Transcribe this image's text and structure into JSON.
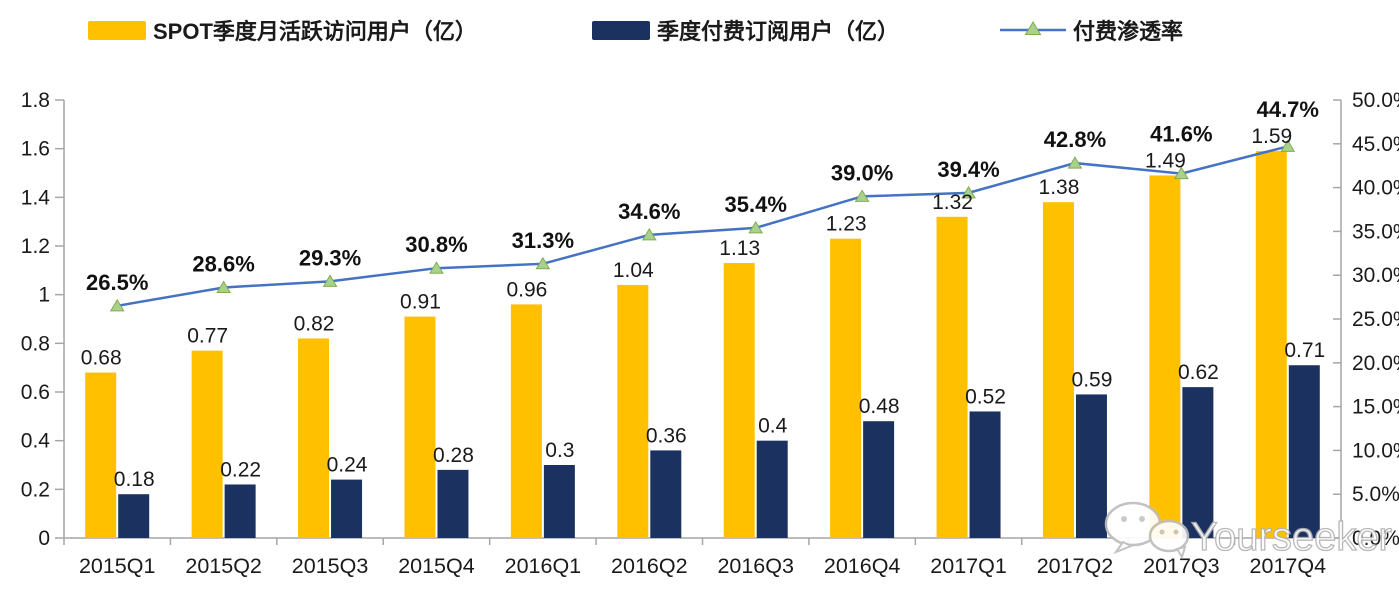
{
  "legend": {
    "items": [
      {
        "label": "SPOT季度月活跃访问用户（亿）",
        "color": "#FFC000"
      },
      {
        "label": "季度付费订阅用户（亿）",
        "color": "#1B3261"
      },
      {
        "label": "付费渗透率",
        "line_color": "#4472C4",
        "marker_color": "#A9D18E"
      }
    ]
  },
  "chart_data": {
    "type": "bar",
    "subtype": "combo-bar-line-dual-axis",
    "title": "",
    "categories": [
      "2015Q1",
      "2015Q2",
      "2015Q3",
      "2015Q4",
      "2016Q1",
      "2016Q2",
      "2016Q3",
      "2016Q4",
      "2017Q1",
      "2017Q2",
      "2017Q3",
      "2017Q4"
    ],
    "series": [
      {
        "name": "SPOT季度月活跃访问用户（亿）",
        "type": "bar",
        "axis": "left",
        "color": "#FFC000",
        "values": [
          0.68,
          0.77,
          0.82,
          0.91,
          0.96,
          1.04,
          1.13,
          1.23,
          1.32,
          1.38,
          1.49,
          1.59
        ],
        "labels": [
          "0.68",
          "0.77",
          "0.82",
          "0.91",
          "0.96",
          "1.04",
          "1.13",
          "1.23",
          "1.32",
          "1.38",
          "1.49",
          "1.59"
        ]
      },
      {
        "name": "季度付费订阅用户（亿）",
        "type": "bar",
        "axis": "left",
        "color": "#1B3261",
        "values": [
          0.18,
          0.22,
          0.24,
          0.28,
          0.3,
          0.36,
          0.4,
          0.48,
          0.52,
          0.59,
          0.62,
          0.71
        ],
        "labels": [
          "0.18",
          "0.22",
          "0.24",
          "0.28",
          "0.3",
          "0.36",
          "0.4",
          "0.48",
          "0.52",
          "0.59",
          "0.62",
          "0.71"
        ]
      },
      {
        "name": "付费渗透率",
        "type": "line",
        "axis": "right",
        "color": "#4472C4",
        "marker": "triangle",
        "marker_color": "#A9D18E",
        "marker_edge_color": "#82AB52",
        "values": [
          26.5,
          28.6,
          29.3,
          30.8,
          31.3,
          34.6,
          35.4,
          39.0,
          39.4,
          42.8,
          41.6,
          44.7
        ],
        "labels": [
          "26.5%",
          "28.6%",
          "29.3%",
          "30.8%",
          "31.3%",
          "34.6%",
          "35.4%",
          "39.0%",
          "39.4%",
          "42.8%",
          "41.6%",
          "44.7%"
        ]
      }
    ],
    "left_axis": {
      "min": 0,
      "max": 1.8,
      "step": 0.2,
      "tick_labels": [
        "0",
        "0.2",
        "0.4",
        "0.6",
        "0.8",
        "1",
        "1.2",
        "1.4",
        "1.6",
        "1.8"
      ]
    },
    "right_axis": {
      "min": 0,
      "max": 50,
      "step": 5,
      "tick_labels": [
        "0.0%",
        "5.0%",
        "10.0%",
        "15.0%",
        "20.0%",
        "25.0%",
        "30.0%",
        "35.0%",
        "40.0%",
        "45.0%",
        "50.0%"
      ]
    },
    "grid": false,
    "legend_position": "top",
    "axis_color": "#a6a6a6",
    "label_color": "#1a1a1a"
  },
  "watermark": {
    "text": "Yourseeker",
    "icon": "wechat-icon"
  }
}
